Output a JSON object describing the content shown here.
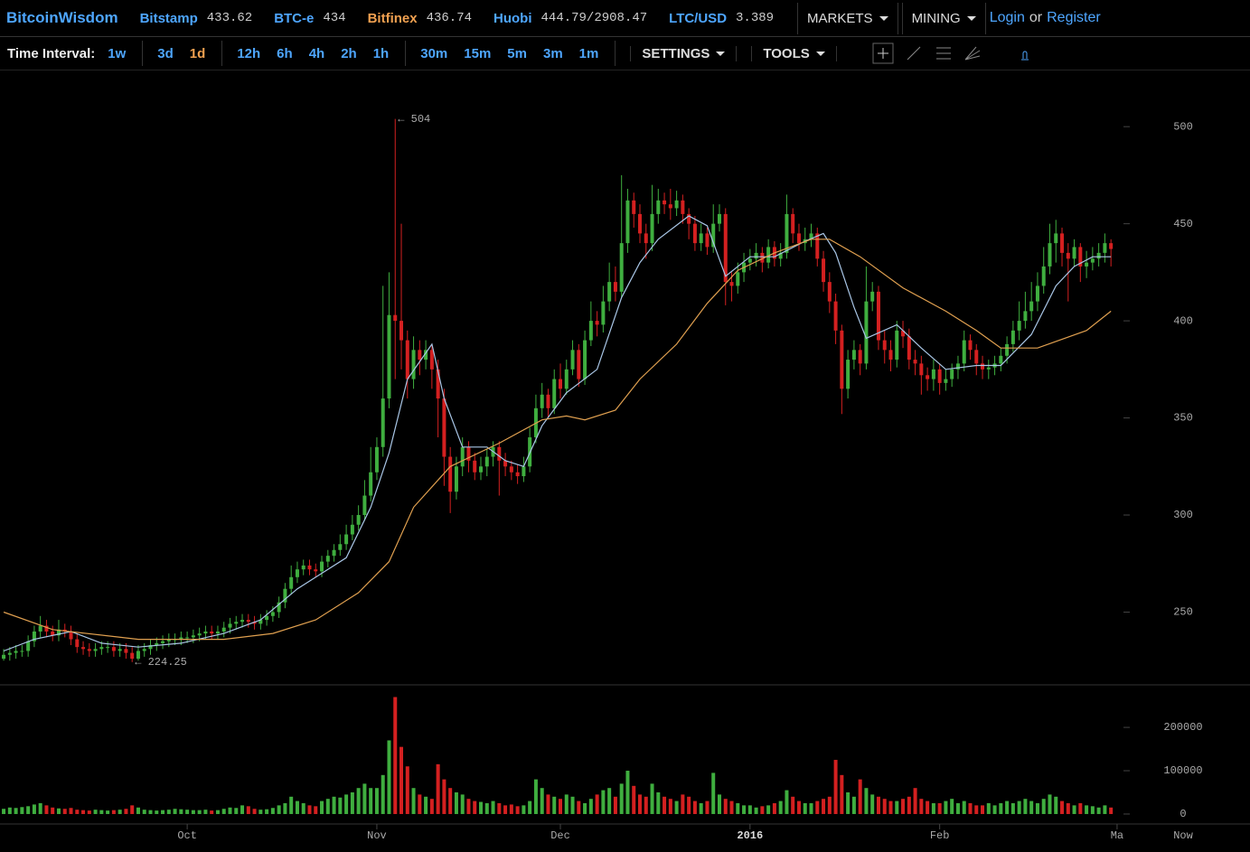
{
  "header": {
    "brand": "BitcoinWisdom",
    "tickers": [
      {
        "name": "Bitstamp",
        "price": "433.62",
        "color": "#4ea6ff"
      },
      {
        "name": "BTC-e",
        "price": "434",
        "color": "#4ea6ff"
      },
      {
        "name": "Bitfinex",
        "price": "436.74",
        "color": "#f0a050"
      },
      {
        "name": "Huobi",
        "price": "444.79/2908.47",
        "color": "#4ea6ff"
      },
      {
        "name": "LTC/USD",
        "price": "3.389",
        "color": "#4ea6ff"
      }
    ],
    "menus": [
      "MARKETS",
      "MINING"
    ],
    "login": "Login",
    "or": "or",
    "register": "Register"
  },
  "toolbar": {
    "label": "Time Interval:",
    "intervals": [
      "1w",
      "3d",
      "1d",
      "12h",
      "6h",
      "4h",
      "2h",
      "1h",
      "30m",
      "15m",
      "5m",
      "3m",
      "1m"
    ],
    "selected_index": 2,
    "settings": "SETTINGS",
    "tools": "TOOLS"
  },
  "chart_data": [
    {
      "type": "candlestick",
      "up_color": "#3fae3f",
      "down_color": "#d42020",
      "xlim": [
        -0.6,
        182.6
      ],
      "ylim": [
        213,
        528
      ],
      "yticks": [
        250,
        300,
        350,
        400,
        450,
        500
      ],
      "xticks": [
        {
          "value": 30,
          "label": "Oct"
        },
        {
          "value": 61,
          "label": "Nov"
        },
        {
          "value": 91,
          "label": "Dec"
        },
        {
          "value": 122,
          "label": "2016"
        },
        {
          "value": 153,
          "label": "Feb"
        },
        {
          "value": 182,
          "label": "Ma"
        }
      ],
      "open": [
        226,
        228,
        229,
        230,
        230,
        235,
        240,
        243,
        240,
        238,
        241,
        240,
        236,
        232,
        231,
        230,
        231,
        232,
        232,
        230,
        231,
        229,
        226,
        230,
        231,
        233,
        234,
        235,
        236,
        236,
        237,
        237,
        238,
        239,
        240,
        239,
        240,
        242,
        244,
        245,
        246,
        245,
        244,
        246,
        248,
        250,
        255,
        262,
        268,
        272,
        274,
        272,
        271,
        276,
        279,
        282,
        285,
        290,
        295,
        300,
        310,
        322,
        335,
        360,
        403,
        400,
        390,
        370,
        385,
        380,
        385,
        375,
        360,
        330,
        312,
        325,
        335,
        328,
        322,
        325,
        330,
        335,
        328,
        325,
        322,
        320,
        325,
        340,
        355,
        362,
        355,
        370,
        365,
        375,
        385,
        370,
        390,
        400,
        398,
        410,
        420,
        415,
        440,
        462,
        455,
        445,
        440,
        455,
        462,
        460,
        458,
        462,
        455,
        450,
        440,
        445,
        438,
        450,
        455,
        420,
        418,
        425,
        430,
        432,
        435,
        430,
        438,
        432,
        435,
        455,
        445,
        440,
        442,
        445,
        432,
        420,
        410,
        395,
        365,
        380,
        385,
        378,
        410,
        415,
        390,
        385,
        380,
        395,
        392,
        380,
        378,
        372,
        370,
        375,
        368,
        370,
        375,
        378,
        390,
        385,
        378,
        375,
        376,
        378,
        382,
        388,
        395,
        400,
        405,
        410,
        418,
        428,
        440,
        445,
        435,
        432,
        438,
        428,
        430,
        432,
        435,
        440
      ],
      "high": [
        231,
        232,
        233,
        233,
        238,
        243,
        248,
        246,
        243,
        246,
        244,
        243,
        239,
        235,
        234,
        234,
        235,
        235,
        235,
        234,
        234,
        232,
        233,
        234,
        236,
        237,
        238,
        239,
        239,
        240,
        240,
        241,
        242,
        243,
        243,
        243,
        245,
        247,
        248,
        249,
        249,
        248,
        249,
        251,
        253,
        258,
        265,
        274,
        276,
        277,
        277,
        275,
        279,
        282,
        285,
        290,
        295,
        300,
        305,
        318,
        335,
        340,
        418,
        425,
        504,
        450,
        395,
        392,
        390,
        390,
        388,
        380,
        365,
        335,
        330,
        340,
        338,
        332,
        330,
        334,
        338,
        338,
        332,
        328,
        326,
        330,
        345,
        362,
        368,
        365,
        375,
        378,
        380,
        390,
        388,
        395,
        410,
        405,
        418,
        430,
        428,
        475,
        468,
        466,
        460,
        450,
        470,
        468,
        466,
        468,
        467,
        465,
        458,
        454,
        450,
        448,
        460,
        460,
        458,
        425,
        430,
        435,
        437,
        440,
        438,
        442,
        441,
        440,
        465,
        458,
        450,
        448,
        450,
        448,
        436,
        425,
        414,
        398,
        385,
        390,
        388,
        428,
        420,
        418,
        395,
        390,
        400,
        400,
        396,
        385,
        382,
        376,
        380,
        378,
        375,
        378,
        382,
        395,
        393,
        388,
        382,
        380,
        382,
        386,
        392,
        400,
        410,
        415,
        420,
        425,
        438,
        450,
        452,
        448,
        440,
        442,
        440,
        436,
        438,
        440,
        445,
        442
      ],
      "low": [
        225,
        225,
        226,
        227,
        227,
        232,
        237,
        237,
        235,
        235,
        237,
        233,
        229,
        228,
        227,
        227,
        228,
        229,
        227,
        227,
        226,
        224.25,
        225,
        227,
        228,
        230,
        231,
        232,
        233,
        233,
        234,
        234,
        235,
        236,
        236,
        236,
        237,
        239,
        241,
        242,
        242,
        241,
        241,
        243,
        245,
        247,
        252,
        259,
        265,
        269,
        269,
        268,
        268,
        273,
        276,
        279,
        282,
        287,
        292,
        297,
        307,
        318,
        330,
        355,
        370,
        375,
        360,
        365,
        372,
        375,
        365,
        340,
        315,
        301,
        308,
        320,
        322,
        318,
        318,
        320,
        325,
        310,
        320,
        318,
        316,
        317,
        322,
        337,
        350,
        350,
        352,
        360,
        362,
        372,
        366,
        367,
        387,
        392,
        394,
        405,
        410,
        412,
        435,
        448,
        440,
        432,
        436,
        450,
        455,
        452,
        454,
        450,
        442,
        436,
        436,
        434,
        435,
        446,
        408,
        410,
        414,
        420,
        426,
        428,
        425,
        427,
        428,
        428,
        432,
        440,
        436,
        436,
        438,
        428,
        415,
        404,
        388,
        352,
        360,
        375,
        372,
        375,
        405,
        385,
        378,
        374,
        376,
        386,
        375,
        372,
        362,
        364,
        364,
        362,
        364,
        366,
        370,
        374,
        380,
        372,
        370,
        370,
        372,
        374,
        378,
        384,
        390,
        396,
        400,
        405,
        414,
        424,
        430,
        428,
        410,
        428,
        420,
        422,
        426,
        428,
        430,
        428
      ],
      "close": [
        228,
        229,
        230,
        230,
        235,
        240,
        243,
        240,
        238,
        241,
        240,
        236,
        232,
        231,
        230,
        231,
        232,
        232,
        230,
        231,
        229,
        226,
        230,
        231,
        233,
        234,
        235,
        236,
        236,
        237,
        237,
        238,
        239,
        240,
        239,
        240,
        242,
        244,
        245,
        246,
        245,
        244,
        246,
        248,
        250,
        255,
        262,
        268,
        272,
        274,
        272,
        271,
        276,
        279,
        282,
        285,
        290,
        295,
        300,
        310,
        322,
        335,
        360,
        403,
        400,
        390,
        370,
        385,
        380,
        385,
        375,
        360,
        330,
        312,
        325,
        335,
        328,
        322,
        325,
        330,
        335,
        328,
        325,
        322,
        320,
        325,
        340,
        355,
        362,
        355,
        370,
        365,
        375,
        385,
        370,
        390,
        400,
        398,
        410,
        420,
        415,
        440,
        462,
        455,
        445,
        440,
        455,
        462,
        460,
        458,
        462,
        455,
        450,
        440,
        445,
        438,
        450,
        455,
        420,
        418,
        425,
        430,
        432,
        435,
        430,
        438,
        432,
        435,
        455,
        445,
        440,
        442,
        445,
        432,
        420,
        410,
        395,
        365,
        380,
        385,
        378,
        410,
        415,
        390,
        385,
        380,
        395,
        392,
        380,
        378,
        372,
        370,
        375,
        368,
        370,
        375,
        378,
        390,
        385,
        378,
        375,
        376,
        378,
        382,
        388,
        395,
        400,
        405,
        410,
        418,
        428,
        440,
        445,
        435,
        432,
        438,
        428,
        430,
        432,
        435,
        440,
        437
      ],
      "series": [
        {
          "color": "#a9c6e6",
          "x": [
            0,
            5,
            11,
            16,
            22,
            29,
            36,
            42,
            48,
            56,
            60,
            63,
            66,
            70,
            72,
            75,
            79,
            82,
            85,
            88,
            92,
            97,
            101,
            104,
            107,
            112,
            115,
            118,
            122,
            126,
            131,
            134,
            136,
            139,
            141,
            146,
            150,
            154,
            159,
            163,
            168,
            172,
            175,
            178,
            181
          ],
          "values": [
            230,
            236,
            240,
            234,
            232,
            234,
            239,
            246,
            262,
            278,
            304,
            332,
            370,
            388,
            360,
            335,
            335,
            328,
            325,
            346,
            363,
            375,
            412,
            430,
            442,
            454,
            449,
            423,
            433,
            433,
            441,
            445,
            435,
            407,
            391,
            398,
            386,
            375,
            377,
            377,
            393,
            418,
            428,
            433,
            433
          ]
        },
        {
          "color": "#e0a050",
          "x": [
            0,
            8,
            22,
            36,
            44,
            51,
            58,
            63,
            67,
            73,
            81,
            88,
            92,
            95,
            100,
            104,
            110,
            115,
            120,
            126,
            132,
            135,
            140,
            147,
            154,
            159,
            163,
            169,
            177,
            181
          ],
          "values": [
            250,
            241,
            236,
            236,
            239,
            246,
            260,
            276,
            304,
            325,
            337,
            349,
            351,
            349,
            354,
            370,
            388,
            409,
            426,
            435,
            442,
            442,
            433,
            417,
            405,
            395,
            386,
            386,
            395,
            405
          ]
        }
      ],
      "annotations": [
        {
          "text": "← 504",
          "x": 64,
          "y": 504
        },
        {
          "text": "← 224.25",
          "x": 21,
          "y": 224.25
        }
      ]
    },
    {
      "type": "volume",
      "ylim": [
        -23000,
        294000
      ],
      "yticks": [
        0,
        100000,
        200000
      ],
      "x_end_label": "Now",
      "values": [
        12000,
        15000,
        14000,
        16000,
        18000,
        22000,
        25000,
        20000,
        15000,
        13000,
        12000,
        14000,
        10000,
        9000,
        8000,
        10000,
        9000,
        8000,
        9000,
        10000,
        12000,
        20000,
        15000,
        10000,
        9000,
        8000,
        9000,
        10000,
        12000,
        11000,
        10000,
        9000,
        9000,
        10000,
        8000,
        9000,
        12000,
        15000,
        14000,
        20000,
        18000,
        12000,
        10000,
        11000,
        14000,
        20000,
        25000,
        40000,
        30000,
        25000,
        20000,
        18000,
        30000,
        35000,
        40000,
        38000,
        45000,
        50000,
        60000,
        70000,
        60000,
        60000,
        90000,
        170000,
        270000,
        155000,
        110000,
        60000,
        45000,
        40000,
        35000,
        115000,
        80000,
        60000,
        50000,
        45000,
        35000,
        30000,
        28000,
        25000,
        30000,
        25000,
        20000,
        22000,
        18000,
        20000,
        30000,
        80000,
        60000,
        45000,
        40000,
        35000,
        45000,
        40000,
        30000,
        25000,
        35000,
        45000,
        55000,
        60000,
        40000,
        70000,
        100000,
        65000,
        45000,
        40000,
        70000,
        50000,
        40000,
        35000,
        30000,
        45000,
        40000,
        30000,
        25000,
        30000,
        95000,
        45000,
        35000,
        30000,
        25000,
        20000,
        20000,
        15000,
        18000,
        20000,
        25000,
        30000,
        55000,
        40000,
        30000,
        25000,
        25000,
        30000,
        35000,
        40000,
        125000,
        90000,
        50000,
        40000,
        80000,
        60000,
        45000,
        40000,
        35000,
        30000,
        30000,
        35000,
        40000,
        60000,
        35000,
        30000,
        25000,
        25000,
        30000,
        35000,
        25000,
        30000,
        25000,
        20000,
        20000,
        25000,
        20000,
        25000,
        30000,
        25000,
        30000,
        35000,
        30000,
        25000,
        35000,
        45000,
        40000,
        30000,
        25000,
        20000,
        25000,
        20000,
        18000,
        15000,
        20000,
        15000
      ]
    }
  ]
}
